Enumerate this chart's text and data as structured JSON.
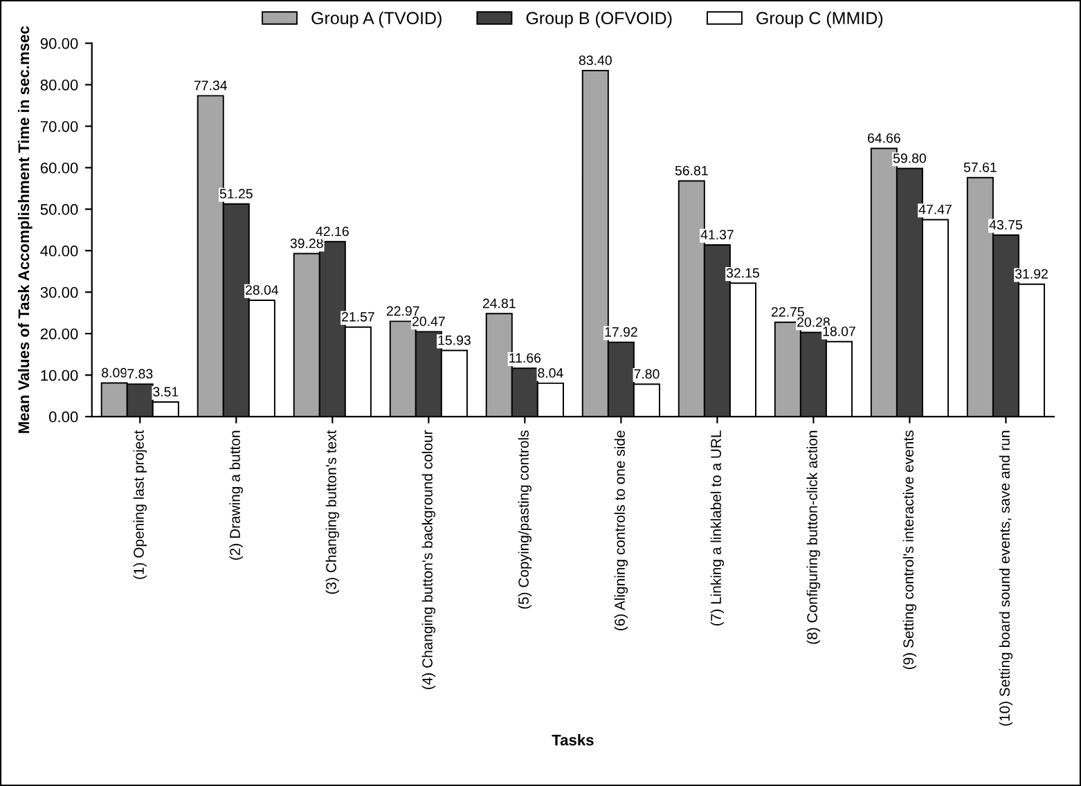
{
  "chart_data": {
    "type": "bar",
    "xlabel": "Tasks",
    "ylabel": "Mean Values of Task Accomplishment Time in sec.msec",
    "categories": [
      "(1) Opening last project",
      "(2) Drawing a button",
      "(3) Changing button's text",
      "(4) Changing button's background colour",
      "(5) Copying/pasting controls",
      "(6) Aligning controls to one side",
      "(7) Linking a linklabel to a URL",
      "(8) Configuring button-click action",
      "(9) Setting control's interactive events",
      "(10) Setting board sound events, save and run"
    ],
    "series": [
      {
        "name": "Group A (TVOID)",
        "color": "#a6a6a6",
        "values": [
          8.09,
          77.34,
          39.28,
          22.97,
          24.81,
          83.4,
          56.81,
          22.75,
          64.66,
          57.61
        ]
      },
      {
        "name": "Group B (OFVOID)",
        "color": "#404040",
        "values": [
          7.83,
          51.25,
          42.16,
          20.47,
          11.66,
          17.92,
          41.37,
          20.28,
          59.8,
          43.75
        ]
      },
      {
        "name": "Group C (MMID)",
        "color": "#ffffff",
        "values": [
          3.51,
          28.04,
          21.57,
          15.93,
          8.04,
          7.8,
          32.15,
          18.07,
          47.47,
          31.92
        ]
      }
    ],
    "ylim": [
      0,
      90
    ],
    "yticks": [
      {
        "value": 0,
        "label": "0.00"
      },
      {
        "value": 10,
        "label": "10.00"
      },
      {
        "value": 20,
        "label": "20.00"
      },
      {
        "value": 30,
        "label": "30.00"
      },
      {
        "value": 40,
        "label": "40.00"
      },
      {
        "value": 50,
        "label": "50.00"
      },
      {
        "value": 60,
        "label": "60.00"
      },
      {
        "value": 70,
        "label": "70.00"
      },
      {
        "value": 80,
        "label": "80.00"
      },
      {
        "value": 90,
        "label": "90.00"
      }
    ],
    "value_labels": [
      [
        "8.09",
        "77.34",
        "39.28",
        "22.97",
        "24.81",
        "83.40",
        "56.81",
        "22.75",
        "64.66",
        "57.61"
      ],
      [
        "7.83",
        "51.25",
        "42.16",
        "20.47",
        "11.66",
        "17.92",
        "41.37",
        "20.28",
        "59.80",
        "43.75"
      ],
      [
        "3.51",
        "28.04",
        "21.57",
        "15.93",
        "8.04",
        "7.80",
        "32.15",
        "18.07",
        "47.47",
        "31.92"
      ]
    ],
    "legend": "top",
    "grid": false
  }
}
